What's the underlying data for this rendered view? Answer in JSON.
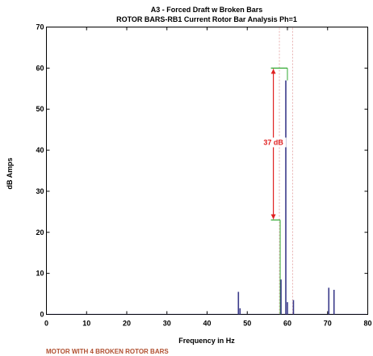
{
  "chart_data": {
    "type": "line",
    "title": "A3   - Forced Draft w Broken Bars",
    "subtitle": "ROTOR BARS-RB1    Current Rotor Bar Analysis Ph=1",
    "xlabel": "Frequency in Hz",
    "ylabel": "dB Amps",
    "xlim": [
      0,
      80
    ],
    "ylim": [
      0,
      70
    ],
    "xticks": [
      0,
      10,
      20,
      30,
      40,
      50,
      60,
      70,
      80
    ],
    "yticks": [
      0,
      10,
      20,
      30,
      40,
      50,
      60,
      70
    ],
    "grid": false,
    "caption": "MOTOR WITH 4 BROKEN ROTOR BARS",
    "spectrum_peaks": [
      {
        "x": 47.8,
        "y": 5.5
      },
      {
        "x": 48.2,
        "y": 1.5
      },
      {
        "x": 58.4,
        "y": 8.5
      },
      {
        "x": 59.6,
        "y": 57
      },
      {
        "x": 60.0,
        "y": 3
      },
      {
        "x": 61.5,
        "y": 3.5
      },
      {
        "x": 70.3,
        "y": 6.5
      },
      {
        "x": 71.6,
        "y": 6
      }
    ],
    "reference_lines": [
      {
        "x": 58.0,
        "style": "dashed",
        "color": "#e8b0b0"
      },
      {
        "x": 61.3,
        "style": "dashed",
        "color": "#e8b0b0"
      }
    ],
    "annotation": {
      "text": "37 dB",
      "top": 60,
      "bottom": 23,
      "x": 56.5,
      "color": "#e02020"
    },
    "colors": {
      "spectrum": "#3a3a8a",
      "marker": "#33aa33",
      "annotation": "#e02020",
      "caption": "#b05030"
    }
  }
}
